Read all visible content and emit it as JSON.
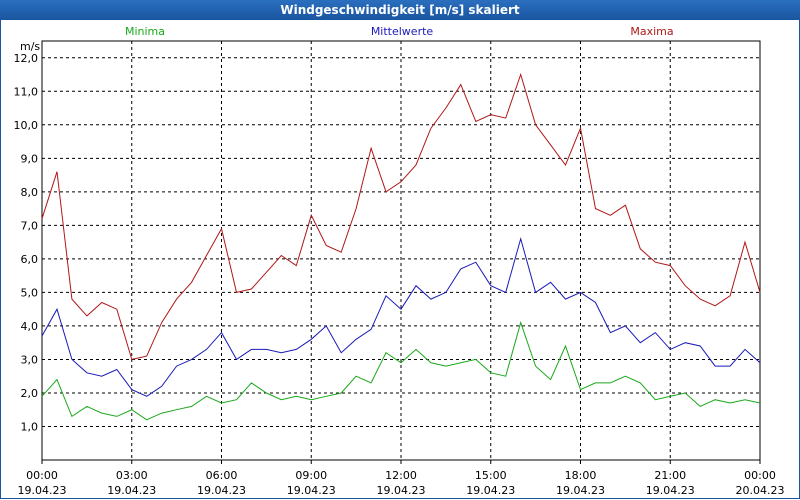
{
  "window": {
    "title": "Windgeschwindigkeit [m/s] skaliert"
  },
  "chart_data": {
    "type": "line",
    "title": "Windgeschwindigkeit [m/s] skaliert",
    "ylabel": "m/s",
    "xlabel": "",
    "ylim": [
      0.0,
      12.5
    ],
    "xlim": [
      0,
      24
    ],
    "grid": true,
    "y_ticks": [
      {
        "value": 1,
        "label": "1,0"
      },
      {
        "value": 2,
        "label": "2,0"
      },
      {
        "value": 3,
        "label": "3,0"
      },
      {
        "value": 4,
        "label": "4,0"
      },
      {
        "value": 5,
        "label": "5,0"
      },
      {
        "value": 6,
        "label": "6,0"
      },
      {
        "value": 7,
        "label": "7,0"
      },
      {
        "value": 8,
        "label": "8,0"
      },
      {
        "value": 9,
        "label": "9,0"
      },
      {
        "value": 10,
        "label": "10,0"
      },
      {
        "value": 11,
        "label": "11,0"
      },
      {
        "value": 12,
        "label": "12,0"
      }
    ],
    "x_ticks": [
      {
        "value": 0,
        "time": "00:00",
        "date": "19.04.23"
      },
      {
        "value": 3,
        "time": "03:00",
        "date": "19.04.23"
      },
      {
        "value": 6,
        "time": "06:00",
        "date": "19.04.23"
      },
      {
        "value": 9,
        "time": "09:00",
        "date": "19.04.23"
      },
      {
        "value": 12,
        "time": "12:00",
        "date": "19.04.23"
      },
      {
        "value": 15,
        "time": "15:00",
        "date": "19.04.23"
      },
      {
        "value": 18,
        "time": "18:00",
        "date": "19.04.23"
      },
      {
        "value": 21,
        "time": "21:00",
        "date": "19.04.23"
      },
      {
        "value": 24,
        "time": "00:00",
        "date": "20.04.23"
      }
    ],
    "x_hours": [
      0,
      0.5,
      1,
      1.5,
      2,
      2.5,
      3,
      3.5,
      4,
      4.5,
      5,
      5.5,
      6,
      6.5,
      7,
      7.5,
      8,
      8.5,
      9,
      9.5,
      10,
      10.5,
      11,
      11.5,
      12,
      12.5,
      13,
      13.5,
      14,
      14.5,
      15,
      15.5,
      16,
      16.5,
      17,
      17.5,
      18,
      18.5,
      19,
      19.5,
      20,
      20.5,
      21,
      21.5,
      22,
      22.5,
      23,
      23.5,
      24
    ],
    "series": [
      {
        "name": "Minima",
        "color": "#1aa81a",
        "values": [
          1.9,
          2.4,
          1.3,
          1.6,
          1.4,
          1.3,
          1.5,
          1.2,
          1.4,
          1.5,
          1.6,
          1.9,
          1.7,
          1.8,
          2.3,
          2.0,
          1.8,
          1.9,
          1.8,
          1.9,
          2.0,
          2.5,
          2.3,
          3.2,
          2.9,
          3.3,
          2.9,
          2.8,
          2.9,
          3.0,
          2.6,
          2.5,
          4.1,
          2.8,
          2.4,
          3.4,
          2.1,
          2.3,
          2.3,
          2.5,
          2.3,
          1.8,
          1.9,
          2.0,
          1.6,
          1.8,
          1.7,
          1.8,
          1.7
        ]
      },
      {
        "name": "Mittelwerte",
        "color": "#1a1ab8",
        "values": [
          3.7,
          4.5,
          3.0,
          2.6,
          2.5,
          2.7,
          2.1,
          1.9,
          2.2,
          2.8,
          3.0,
          3.3,
          3.8,
          3.0,
          3.3,
          3.3,
          3.2,
          3.3,
          3.6,
          4.0,
          3.2,
          3.6,
          3.9,
          4.9,
          4.5,
          5.2,
          4.8,
          5.0,
          5.7,
          5.9,
          5.2,
          5.0,
          6.6,
          5.0,
          5.3,
          4.8,
          5.0,
          4.7,
          3.8,
          4.0,
          3.5,
          3.8,
          3.3,
          3.5,
          3.4,
          2.8,
          2.8,
          3.3,
          2.9
        ]
      },
      {
        "name": "Maxima",
        "color": "#b01818",
        "values": [
          7.2,
          8.6,
          4.8,
          4.3,
          4.7,
          4.5,
          3.0,
          3.1,
          4.1,
          4.8,
          5.3,
          6.1,
          6.9,
          5.0,
          5.1,
          5.6,
          6.1,
          5.8,
          7.3,
          6.4,
          6.2,
          7.5,
          9.3,
          8.0,
          8.3,
          8.8,
          9.9,
          10.5,
          11.2,
          10.1,
          10.3,
          10.2,
          11.5,
          10.0,
          9.4,
          8.8,
          9.9,
          7.5,
          7.3,
          7.6,
          6.3,
          5.9,
          5.8,
          5.2,
          4.8,
          4.6,
          4.9,
          6.5,
          5.0
        ]
      }
    ]
  }
}
